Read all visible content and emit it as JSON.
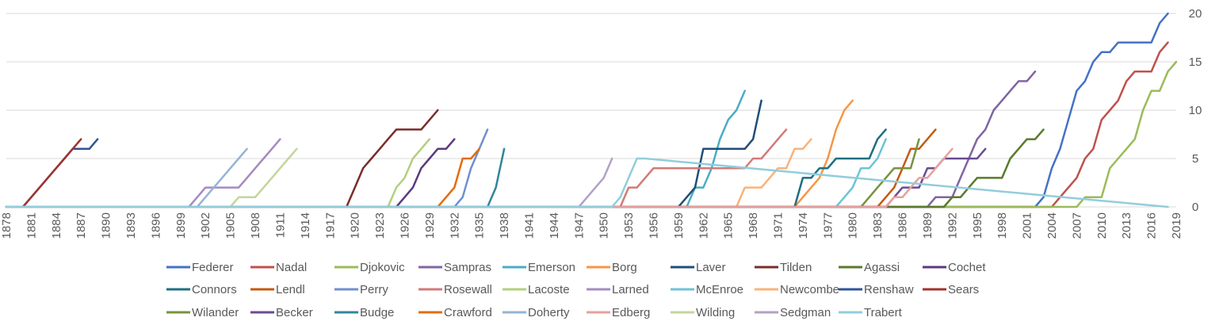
{
  "chart_data": {
    "type": "line",
    "title": "",
    "xlabel": "",
    "ylabel": "",
    "xlim": [
      1878,
      2019
    ],
    "ylim": [
      0,
      20
    ],
    "y_ticks": [
      0,
      5,
      10,
      15,
      20
    ],
    "x_ticks": [
      1878,
      1881,
      1884,
      1887,
      1890,
      1893,
      1896,
      1899,
      1902,
      1905,
      1908,
      1911,
      1914,
      1917,
      1920,
      1923,
      1926,
      1929,
      1932,
      1935,
      1938,
      1941,
      1944,
      1947,
      1950,
      1953,
      1956,
      1959,
      1962,
      1965,
      1968,
      1971,
      1974,
      1977,
      1980,
      1983,
      1986,
      1989,
      1992,
      1995,
      1998,
      2001,
      2004,
      2007,
      2010,
      2013,
      2016,
      2019
    ],
    "grid": "horizontal",
    "legend_position": "bottom",
    "series": [
      {
        "name": "Federer",
        "color": "#4472C4",
        "points": [
          [
            1878,
            0
          ],
          [
            2002,
            0
          ],
          [
            2003,
            1
          ],
          [
            2004,
            4
          ],
          [
            2005,
            6
          ],
          [
            2006,
            9
          ],
          [
            2007,
            12
          ],
          [
            2008,
            13
          ],
          [
            2009,
            15
          ],
          [
            2010,
            16
          ],
          [
            2011,
            16
          ],
          [
            2012,
            17
          ],
          [
            2016,
            17
          ],
          [
            2017,
            19
          ],
          [
            2018,
            20
          ]
        ]
      },
      {
        "name": "Nadal",
        "color": "#C0504D",
        "points": [
          [
            1878,
            0
          ],
          [
            2004,
            0
          ],
          [
            2005,
            1
          ],
          [
            2006,
            2
          ],
          [
            2007,
            3
          ],
          [
            2008,
            5
          ],
          [
            2009,
            6
          ],
          [
            2010,
            9
          ],
          [
            2011,
            10
          ],
          [
            2012,
            11
          ],
          [
            2013,
            13
          ],
          [
            2014,
            14
          ],
          [
            2016,
            14
          ],
          [
            2017,
            16
          ],
          [
            2018,
            17
          ]
        ]
      },
      {
        "name": "Djokovic",
        "color": "#9BBB59",
        "points": [
          [
            1878,
            0
          ],
          [
            2007,
            0
          ],
          [
            2008,
            1
          ],
          [
            2010,
            1
          ],
          [
            2011,
            4
          ],
          [
            2012,
            5
          ],
          [
            2013,
            6
          ],
          [
            2014,
            7
          ],
          [
            2015,
            10
          ],
          [
            2016,
            12
          ],
          [
            2017,
            12
          ],
          [
            2018,
            14
          ],
          [
            2019,
            15
          ]
        ]
      },
      {
        "name": "Sampras",
        "color": "#8064A2",
        "points": [
          [
            1878,
            0
          ],
          [
            1989,
            0
          ],
          [
            1990,
            1
          ],
          [
            1992,
            1
          ],
          [
            1993,
            3
          ],
          [
            1994,
            5
          ],
          [
            1995,
            7
          ],
          [
            1996,
            8
          ],
          [
            1997,
            10
          ],
          [
            1998,
            11
          ],
          [
            1999,
            12
          ],
          [
            2000,
            13
          ],
          [
            2001,
            13
          ],
          [
            2002,
            14
          ]
        ]
      },
      {
        "name": "Emerson",
        "color": "#4BACC6",
        "points": [
          [
            1878,
            0
          ],
          [
            1960,
            0
          ],
          [
            1961,
            2
          ],
          [
            1962,
            2
          ],
          [
            1963,
            4
          ],
          [
            1964,
            7
          ],
          [
            1965,
            9
          ],
          [
            1966,
            10
          ],
          [
            1967,
            12
          ]
        ]
      },
      {
        "name": "Borg",
        "color": "#F79646",
        "points": [
          [
            1878,
            0
          ],
          [
            1973,
            0
          ],
          [
            1974,
            1
          ],
          [
            1975,
            2
          ],
          [
            1976,
            3
          ],
          [
            1977,
            5
          ],
          [
            1978,
            8
          ],
          [
            1979,
            10
          ],
          [
            1980,
            11
          ]
        ]
      },
      {
        "name": "Laver",
        "color": "#1F4E79",
        "points": [
          [
            1878,
            0
          ],
          [
            1958,
            0
          ],
          [
            1959,
            0
          ],
          [
            1960,
            1
          ],
          [
            1961,
            2
          ],
          [
            1962,
            6
          ],
          [
            1967,
            6
          ],
          [
            1968,
            7
          ],
          [
            1969,
            11
          ]
        ]
      },
      {
        "name": "Tilden",
        "color": "#7B2C2C",
        "points": [
          [
            1878,
            0
          ],
          [
            1919,
            0
          ],
          [
            1920,
            2
          ],
          [
            1921,
            4
          ],
          [
            1922,
            5
          ],
          [
            1923,
            6
          ],
          [
            1924,
            7
          ],
          [
            1925,
            8
          ],
          [
            1928,
            8
          ],
          [
            1929,
            9
          ],
          [
            1930,
            10
          ]
        ]
      },
      {
        "name": "Agassi",
        "color": "#5B7A2B",
        "points": [
          [
            1878,
            0
          ],
          [
            1991,
            0
          ],
          [
            1992,
            1
          ],
          [
            1993,
            1
          ],
          [
            1994,
            2
          ],
          [
            1995,
            3
          ],
          [
            1998,
            3
          ],
          [
            1999,
            5
          ],
          [
            2000,
            6
          ],
          [
            2001,
            7
          ],
          [
            2002,
            7
          ],
          [
            2003,
            8
          ]
        ]
      },
      {
        "name": "Cochet",
        "color": "#5C3A7E",
        "points": [
          [
            1878,
            0
          ],
          [
            1925,
            0
          ],
          [
            1926,
            1
          ],
          [
            1927,
            2
          ],
          [
            1928,
            4
          ],
          [
            1929,
            5
          ],
          [
            1930,
            6
          ],
          [
            1931,
            6
          ],
          [
            1932,
            7
          ]
        ]
      },
      {
        "name": "Connors",
        "color": "#1E6F80",
        "points": [
          [
            1878,
            0
          ],
          [
            1973,
            0
          ],
          [
            1974,
            3
          ],
          [
            1975,
            3
          ],
          [
            1976,
            4
          ],
          [
            1977,
            4
          ],
          [
            1978,
            5
          ],
          [
            1982,
            5
          ],
          [
            1983,
            7
          ],
          [
            1984,
            8
          ]
        ]
      },
      {
        "name": "Lendl",
        "color": "#C55A11",
        "points": [
          [
            1878,
            0
          ],
          [
            1983,
            0
          ],
          [
            1984,
            1
          ],
          [
            1985,
            2
          ],
          [
            1986,
            4
          ],
          [
            1987,
            6
          ],
          [
            1988,
            6
          ],
          [
            1989,
            7
          ],
          [
            1990,
            8
          ]
        ]
      },
      {
        "name": "Perry",
        "color": "#6F8FCF",
        "points": [
          [
            1878,
            0
          ],
          [
            1932,
            0
          ],
          [
            1933,
            1
          ],
          [
            1934,
            4
          ],
          [
            1935,
            6
          ],
          [
            1936,
            8
          ]
        ]
      },
      {
        "name": "Rosewall",
        "color": "#D27A78",
        "points": [
          [
            1878,
            0
          ],
          [
            1952,
            0
          ],
          [
            1953,
            2
          ],
          [
            1954,
            2
          ],
          [
            1955,
            3
          ],
          [
            1956,
            4
          ],
          [
            1967,
            4
          ],
          [
            1968,
            5
          ],
          [
            1969,
            5
          ],
          [
            1970,
            6
          ],
          [
            1971,
            7
          ],
          [
            1972,
            8
          ]
        ]
      },
      {
        "name": "Lacoste",
        "color": "#B3CF7F",
        "points": [
          [
            1878,
            0
          ],
          [
            1924,
            0
          ],
          [
            1925,
            2
          ],
          [
            1926,
            3
          ],
          [
            1927,
            5
          ],
          [
            1928,
            6
          ],
          [
            1929,
            7
          ]
        ]
      },
      {
        "name": "Larned",
        "color": "#A58BC0",
        "points": [
          [
            1878,
            0
          ],
          [
            1900,
            0
          ],
          [
            1901,
            1
          ],
          [
            1902,
            2
          ],
          [
            1906,
            2
          ],
          [
            1907,
            3
          ],
          [
            1908,
            4
          ],
          [
            1909,
            5
          ],
          [
            1910,
            6
          ],
          [
            1911,
            7
          ]
        ]
      },
      {
        "name": "McEnroe",
        "color": "#6CC3D8",
        "points": [
          [
            1878,
            0
          ],
          [
            1978,
            0
          ],
          [
            1979,
            1
          ],
          [
            1980,
            2
          ],
          [
            1981,
            4
          ],
          [
            1982,
            4
          ],
          [
            1983,
            5
          ],
          [
            1984,
            7
          ]
        ]
      },
      {
        "name": "Newcombe",
        "color": "#F9B27A",
        "points": [
          [
            1878,
            0
          ],
          [
            1966,
            0
          ],
          [
            1967,
            2
          ],
          [
            1969,
            2
          ],
          [
            1970,
            3
          ],
          [
            1971,
            4
          ],
          [
            1972,
            4
          ],
          [
            1973,
            6
          ],
          [
            1974,
            6
          ],
          [
            1975,
            7
          ]
        ]
      },
      {
        "name": "Renshaw",
        "color": "#2F5597",
        "points": [
          [
            1878,
            0
          ],
          [
            1880,
            0
          ],
          [
            1881,
            1
          ],
          [
            1882,
            2
          ],
          [
            1883,
            3
          ],
          [
            1884,
            4
          ],
          [
            1885,
            5
          ],
          [
            1886,
            6
          ],
          [
            1888,
            6
          ],
          [
            1889,
            7
          ]
        ]
      },
      {
        "name": "Sears",
        "color": "#A0332F",
        "points": [
          [
            1878,
            0
          ],
          [
            1880,
            0
          ],
          [
            1881,
            1
          ],
          [
            1882,
            2
          ],
          [
            1883,
            3
          ],
          [
            1884,
            4
          ],
          [
            1885,
            5
          ],
          [
            1886,
            6
          ],
          [
            1887,
            7
          ]
        ]
      },
      {
        "name": "Wilander",
        "color": "#77933C",
        "points": [
          [
            1878,
            0
          ],
          [
            1981,
            0
          ],
          [
            1982,
            1
          ],
          [
            1983,
            2
          ],
          [
            1984,
            3
          ],
          [
            1985,
            4
          ],
          [
            1987,
            4
          ],
          [
            1988,
            7
          ]
        ]
      },
      {
        "name": "Becker",
        "color": "#6A4B91",
        "points": [
          [
            1878,
            0
          ],
          [
            1984,
            0
          ],
          [
            1985,
            1
          ],
          [
            1986,
            2
          ],
          [
            1988,
            2
          ],
          [
            1989,
            4
          ],
          [
            1990,
            4
          ],
          [
            1991,
            5
          ],
          [
            1995,
            5
          ],
          [
            1996,
            6
          ]
        ]
      },
      {
        "name": "Budge",
        "color": "#31859C",
        "points": [
          [
            1878,
            0
          ],
          [
            1936,
            0
          ],
          [
            1937,
            2
          ],
          [
            1938,
            6
          ]
        ]
      },
      {
        "name": "Crawford",
        "color": "#E36C09",
        "points": [
          [
            1878,
            0
          ],
          [
            1930,
            0
          ],
          [
            1931,
            1
          ],
          [
            1932,
            2
          ],
          [
            1933,
            5
          ],
          [
            1934,
            5
          ],
          [
            1935,
            6
          ]
        ]
      },
      {
        "name": "Doherty",
        "color": "#95B3D7",
        "points": [
          [
            1878,
            0
          ],
          [
            1901,
            0
          ],
          [
            1902,
            1
          ],
          [
            1903,
            2
          ],
          [
            1904,
            3
          ],
          [
            1905,
            4
          ],
          [
            1906,
            5
          ],
          [
            1907,
            6
          ]
        ]
      },
      {
        "name": "Edberg",
        "color": "#E6A09E",
        "points": [
          [
            1878,
            0
          ],
          [
            1984,
            0
          ],
          [
            1985,
            1
          ],
          [
            1986,
            1
          ],
          [
            1987,
            2
          ],
          [
            1988,
            3
          ],
          [
            1989,
            3
          ],
          [
            1990,
            4
          ],
          [
            1991,
            5
          ],
          [
            1992,
            6
          ]
        ]
      },
      {
        "name": "Wilding",
        "color": "#C3D69B",
        "points": [
          [
            1878,
            0
          ],
          [
            1905,
            0
          ],
          [
            1906,
            1
          ],
          [
            1908,
            1
          ],
          [
            1909,
            2
          ],
          [
            1910,
            3
          ],
          [
            1911,
            4
          ],
          [
            1912,
            5
          ],
          [
            1913,
            6
          ]
        ]
      },
      {
        "name": "Sedgman",
        "color": "#B2A1C7",
        "points": [
          [
            1878,
            0
          ],
          [
            1947,
            0
          ],
          [
            1948,
            1
          ],
          [
            1949,
            2
          ],
          [
            1950,
            3
          ],
          [
            1951,
            5
          ]
        ]
      },
      {
        "name": "Trabert",
        "color": "#92CDDC",
        "points": [
          [
            1878,
            0
          ],
          [
            1951,
            0
          ],
          [
            1952,
            1
          ],
          [
            1953,
            3
          ],
          [
            1954,
            5
          ],
          [
            1955,
            5
          ],
          [
            2018,
            0
          ]
        ]
      }
    ]
  }
}
